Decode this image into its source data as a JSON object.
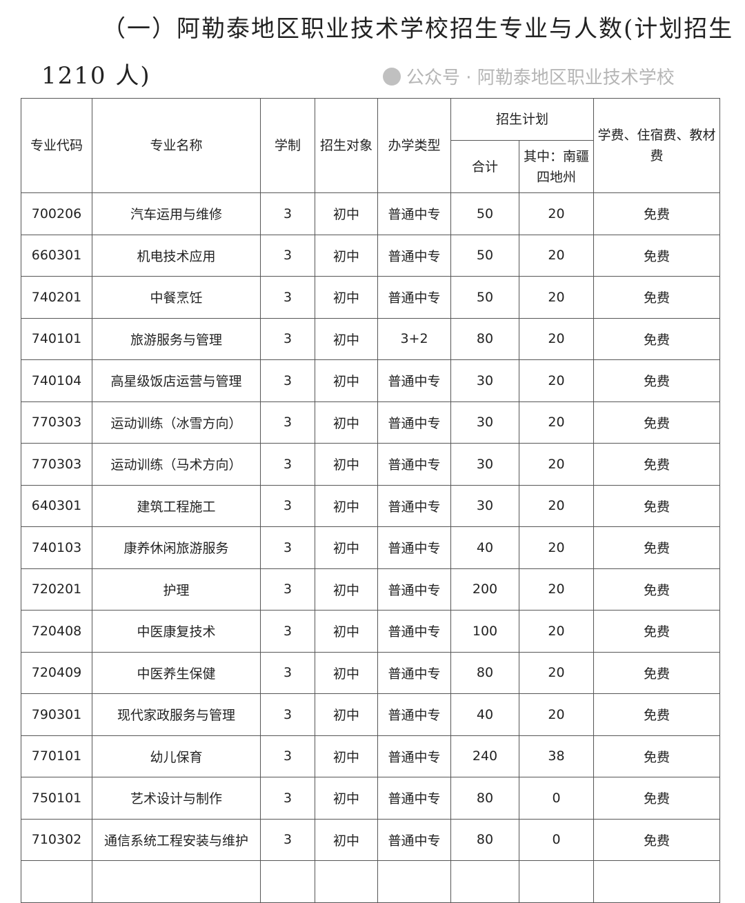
{
  "title": {
    "line1": "（一）阿勒泰地区职业技术学校招生专业与人数(计划招生",
    "line2": "1210 人)"
  },
  "table": {
    "headers": {
      "code": "专业代码",
      "name": "专业名称",
      "years": "学制",
      "target": "招生对象",
      "type": "办学类型",
      "plan": "招生计划",
      "total": "合计",
      "south": "其中：南疆四地州",
      "fees": "学费、住宿费、教材费"
    },
    "rows": [
      {
        "code": "700206",
        "name": "汽车运用与维修",
        "years": "3",
        "target": "初中",
        "type": "普通中专",
        "total": "50",
        "south": "20",
        "fees": "免费"
      },
      {
        "code": "660301",
        "name": "机电技术应用",
        "years": "3",
        "target": "初中",
        "type": "普通中专",
        "total": "50",
        "south": "20",
        "fees": "免费"
      },
      {
        "code": "740201",
        "name": "中餐烹饪",
        "years": "3",
        "target": "初中",
        "type": "普通中专",
        "total": "50",
        "south": "20",
        "fees": "免费"
      },
      {
        "code": "740101",
        "name": "旅游服务与管理",
        "years": "3",
        "target": "初中",
        "type": "3+2",
        "total": "80",
        "south": "20",
        "fees": "免费"
      },
      {
        "code": "740104",
        "name": "高星级饭店运营与管理",
        "years": "3",
        "target": "初中",
        "type": "普通中专",
        "total": "30",
        "south": "20",
        "fees": "免费"
      },
      {
        "code": "770303",
        "name": "运动训练（冰雪方向）",
        "years": "3",
        "target": "初中",
        "type": "普通中专",
        "total": "30",
        "south": "20",
        "fees": "免费"
      },
      {
        "code": "770303",
        "name": "运动训练（马术方向）",
        "years": "3",
        "target": "初中",
        "type": "普通中专",
        "total": "30",
        "south": "20",
        "fees": "免费"
      },
      {
        "code": "640301",
        "name": "建筑工程施工",
        "years": "3",
        "target": "初中",
        "type": "普通中专",
        "total": "30",
        "south": "20",
        "fees": "免费"
      },
      {
        "code": "740103",
        "name": "康养休闲旅游服务",
        "years": "3",
        "target": "初中",
        "type": "普通中专",
        "total": "40",
        "south": "20",
        "fees": "免费"
      },
      {
        "code": "720201",
        "name": "护理",
        "years": "3",
        "target": "初中",
        "type": "普通中专",
        "total": "200",
        "south": "20",
        "fees": "免费"
      },
      {
        "code": "720408",
        "name": "中医康复技术",
        "years": "3",
        "target": "初中",
        "type": "普通中专",
        "total": "100",
        "south": "20",
        "fees": "免费"
      },
      {
        "code": "720409",
        "name": "中医养生保健",
        "years": "3",
        "target": "初中",
        "type": "普通中专",
        "total": "80",
        "south": "20",
        "fees": "免费"
      },
      {
        "code": "790301",
        "name": "现代家政服务与管理",
        "years": "3",
        "target": "初中",
        "type": "普通中专",
        "total": "40",
        "south": "20",
        "fees": "免费"
      },
      {
        "code": "770101",
        "name": "幼儿保育",
        "years": "3",
        "target": "初中",
        "type": "普通中专",
        "total": "240",
        "south": "38",
        "fees": "免费"
      },
      {
        "code": "750101",
        "name": "艺术设计与制作",
        "years": "3",
        "target": "初中",
        "type": "普通中专",
        "total": "80",
        "south": "0",
        "fees": "免费"
      },
      {
        "code": "710302",
        "name": "通信系统工程安装与维护",
        "years": "3",
        "target": "初中",
        "type": "普通中专",
        "total": "80",
        "south": "0",
        "fees": "免费"
      }
    ]
  },
  "watermark": "公众号 · 阿勒泰地区职业技术学校"
}
